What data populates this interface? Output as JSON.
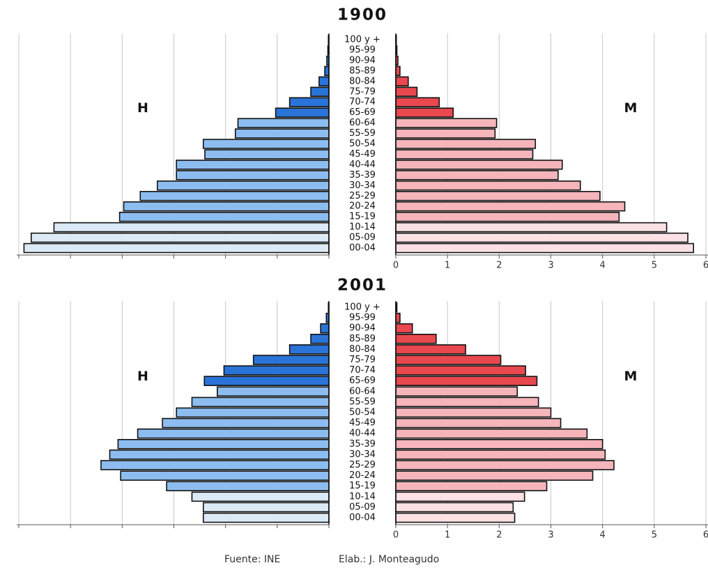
{
  "chart_data": [
    {
      "type": "pyramid",
      "title": "1900",
      "categories": [
        "00-04",
        "05-09",
        "10-14",
        "15-19",
        "20-24",
        "25-29",
        "30-34",
        "35-39",
        "40-44",
        "45-49",
        "50-54",
        "55-59",
        "60-64",
        "65-69",
        "70-74",
        "75-79",
        "80-84",
        "85-89",
        "90-94",
        "95-99",
        "100 y +"
      ],
      "series": [
        {
          "name": "H",
          "values": [
            5.9,
            5.76,
            5.32,
            4.05,
            3.97,
            3.65,
            3.32,
            2.95,
            2.95,
            2.4,
            2.43,
            1.81,
            1.76,
            1.03,
            0.76,
            0.35,
            0.19,
            0.08,
            0.04,
            0.02,
            0.01
          ],
          "colors": [
            "#dceaf8",
            "#dceaf8",
            "#dceaf8",
            "#8dbdf0",
            "#8dbdf0",
            "#8dbdf0",
            "#8dbdf0",
            "#8dbdf0",
            "#8dbdf0",
            "#8dbdf0",
            "#8dbdf0",
            "#8dbdf0",
            "#8dbdf0",
            "#2a74d8",
            "#2a74d8",
            "#2a74d8",
            "#2a74d8",
            "#2a74d8",
            "#2a74d8",
            "#2a74d8",
            "#2a74d8"
          ]
        },
        {
          "name": "M",
          "values": [
            5.76,
            5.65,
            5.24,
            4.32,
            4.43,
            3.95,
            3.57,
            3.14,
            3.22,
            2.65,
            2.7,
            1.92,
            1.95,
            1.11,
            0.84,
            0.41,
            0.24,
            0.08,
            0.04,
            0.02,
            0.01
          ],
          "colors": [
            "#fbe1e4",
            "#fbe1e4",
            "#fbe1e4",
            "#f5b5bb",
            "#f5b5bb",
            "#f5b5bb",
            "#f5b5bb",
            "#f5b5bb",
            "#f5b5bb",
            "#f5b5bb",
            "#f5b5bb",
            "#f5b5bb",
            "#f5b5bb",
            "#e8484e",
            "#e8484e",
            "#e8484e",
            "#e8484e",
            "#e8484e",
            "#e8484e",
            "#e8484e",
            "#e8484e"
          ]
        }
      ],
      "xlim": [
        0,
        6
      ],
      "xticks": [
        0,
        1,
        2,
        3,
        4,
        5,
        6
      ],
      "grid": true
    },
    {
      "type": "pyramid",
      "title": "2001",
      "categories": [
        "00-04",
        "05-09",
        "10-14",
        "15-19",
        "20-24",
        "25-29",
        "30-34",
        "35-39",
        "40-44",
        "45-49",
        "50-54",
        "55-59",
        "60-64",
        "65-69",
        "70-74",
        "75-79",
        "80-84",
        "85-89",
        "90-94",
        "95-99",
        "100 y +"
      ],
      "series": [
        {
          "name": "H",
          "values": [
            2.43,
            2.43,
            2.65,
            3.14,
            4.03,
            4.41,
            4.24,
            4.08,
            3.7,
            3.22,
            2.95,
            2.65,
            2.16,
            2.41,
            2.03,
            1.46,
            0.76,
            0.35,
            0.16,
            0.05,
            0.01
          ],
          "colors": [
            "#dceaf8",
            "#dceaf8",
            "#dceaf8",
            "#8dbdf0",
            "#8dbdf0",
            "#8dbdf0",
            "#8dbdf0",
            "#8dbdf0",
            "#8dbdf0",
            "#8dbdf0",
            "#8dbdf0",
            "#8dbdf0",
            "#8dbdf0",
            "#2a74d8",
            "#2a74d8",
            "#2a74d8",
            "#2a74d8",
            "#2a74d8",
            "#2a74d8",
            "#2a74d8",
            "#2a74d8"
          ]
        },
        {
          "name": "M",
          "values": [
            2.3,
            2.27,
            2.49,
            2.92,
            3.81,
            4.22,
            4.05,
            4.0,
            3.7,
            3.19,
            3.0,
            2.76,
            2.35,
            2.73,
            2.51,
            2.03,
            1.35,
            0.78,
            0.32,
            0.08,
            0.02
          ],
          "colors": [
            "#fbe1e4",
            "#fbe1e4",
            "#fbe1e4",
            "#f5b5bb",
            "#f5b5bb",
            "#f5b5bb",
            "#f5b5bb",
            "#f5b5bb",
            "#f5b5bb",
            "#f5b5bb",
            "#f5b5bb",
            "#f5b5bb",
            "#f5b5bb",
            "#e8484e",
            "#e8484e",
            "#e8484e",
            "#e8484e",
            "#e8484e",
            "#e8484e",
            "#e8484e",
            "#e8484e"
          ]
        }
      ],
      "xlim": [
        0,
        6
      ],
      "xticks": [
        0,
        1,
        2,
        3,
        4,
        5,
        6
      ],
      "grid": true
    }
  ],
  "footer": {
    "source": "Fuente: INE",
    "author": "Elab.: J. Monteagudo"
  }
}
